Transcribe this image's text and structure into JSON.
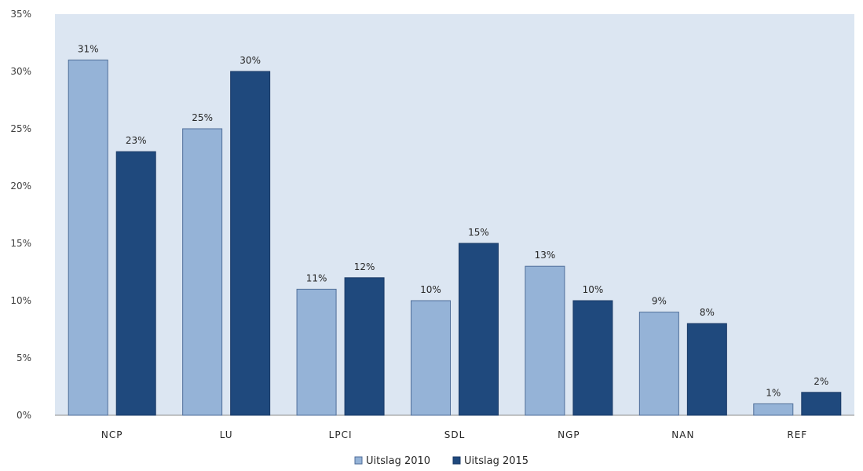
{
  "chart_data": {
    "type": "bar",
    "categories": [
      "NCP",
      "LU",
      "LPCI",
      "SDL",
      "NGP",
      "NAN",
      "REF"
    ],
    "series": [
      {
        "name": "Uitslag 2010",
        "values": [
          31,
          25,
          11,
          10,
          13,
          9,
          1
        ],
        "labels": [
          "31%",
          "25%",
          "11%",
          "10%",
          "13%",
          "9%",
          "1%"
        ],
        "color": "#95b3d7",
        "stroke": "#4f6e99"
      },
      {
        "name": "Uitslag 2015",
        "values": [
          23,
          30,
          12,
          15,
          10,
          8,
          2
        ],
        "labels": [
          "23%",
          "30%",
          "12%",
          "15%",
          "10%",
          "8%",
          "2%"
        ],
        "color": "#1f497d",
        "stroke": "#1a3a66"
      }
    ],
    "ylim": [
      0,
      35
    ],
    "yticks": [
      0,
      5,
      10,
      15,
      20,
      25,
      30,
      35
    ],
    "ytick_labels": [
      "0%",
      "5%",
      "10%",
      "15%",
      "20%",
      "25%",
      "30%",
      "35%"
    ],
    "grid": false,
    "legend_position": "bottom",
    "plot_background": "#dce6f2"
  }
}
